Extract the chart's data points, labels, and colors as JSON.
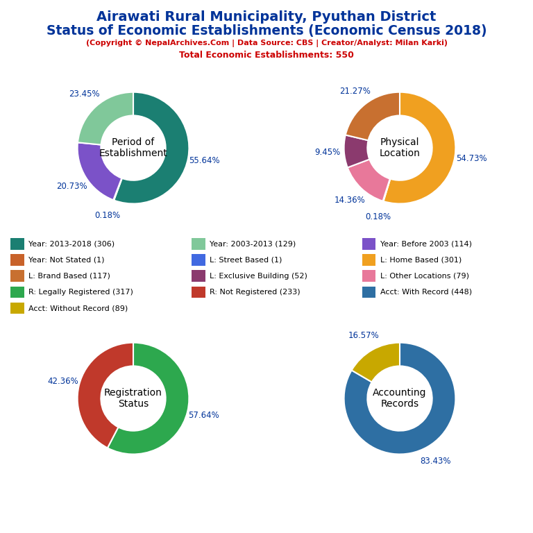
{
  "title_line1": "Airawati Rural Municipality, Pyuthan District",
  "title_line2": "Status of Economic Establishments (Economic Census 2018)",
  "subtitle": "(Copyright © NepalArchives.Com | Data Source: CBS | Creator/Analyst: Milan Karki)",
  "subtitle2": "Total Economic Establishments: 550",
  "pie1_title": "Period of\nEstablishment",
  "pie1_values": [
    306,
    1,
    114,
    129
  ],
  "pie1_colors": [
    "#1b7f72",
    "#c8622a",
    "#7b52c8",
    "#80c89a"
  ],
  "pie1_pcts": [
    "55.64%",
    "0.18%",
    "20.73%",
    "23.45%"
  ],
  "pie1_pct_angles": [
    0,
    90,
    -90,
    -180
  ],
  "pie2_title": "Physical\nLocation",
  "pie2_values": [
    301,
    1,
    79,
    52,
    117
  ],
  "pie2_colors": [
    "#f0a020",
    "#4169e1",
    "#e8789a",
    "#8b3a6e",
    "#c87030"
  ],
  "pie2_pcts": [
    "54.73%",
    "0.18%",
    "14.36%",
    "9.45%",
    "21.27%"
  ],
  "pie3_title": "Registration\nStatus",
  "pie3_values": [
    317,
    233
  ],
  "pie3_colors": [
    "#2da84e",
    "#c0392b"
  ],
  "pie3_pcts": [
    "57.64%",
    "42.36%"
  ],
  "pie4_title": "Accounting\nRecords",
  "pie4_values": [
    448,
    89
  ],
  "pie4_colors": [
    "#2e6fa3",
    "#c8a800"
  ],
  "pie4_pcts": [
    "83.43%",
    "16.57%"
  ],
  "legend_col1": [
    {
      "label": "Year: 2013-2018 (306)",
      "color": "#1b7f72"
    },
    {
      "label": "Year: Not Stated (1)",
      "color": "#c8622a"
    },
    {
      "label": "L: Brand Based (117)",
      "color": "#c87030"
    },
    {
      "label": "R: Legally Registered (317)",
      "color": "#2da84e"
    },
    {
      "label": "Acct: Without Record (89)",
      "color": "#c8a800"
    }
  ],
  "legend_col2": [
    {
      "label": "Year: 2003-2013 (129)",
      "color": "#80c89a"
    },
    {
      "label": "L: Street Based (1)",
      "color": "#4169e1"
    },
    {
      "label": "L: Exclusive Building (52)",
      "color": "#8b3a6e"
    },
    {
      "label": "R: Not Registered (233)",
      "color": "#c0392b"
    }
  ],
  "legend_col3": [
    {
      "label": "Year: Before 2003 (114)",
      "color": "#7b52c8"
    },
    {
      "label": "L: Home Based (301)",
      "color": "#f0a020"
    },
    {
      "label": "L: Other Locations (79)",
      "color": "#e8789a"
    },
    {
      "label": "Acct: With Record (448)",
      "color": "#2e6fa3"
    }
  ],
  "title_color": "#003399",
  "subtitle_color": "#cc0000",
  "pct_color": "#003399",
  "bg_color": "#ffffff"
}
